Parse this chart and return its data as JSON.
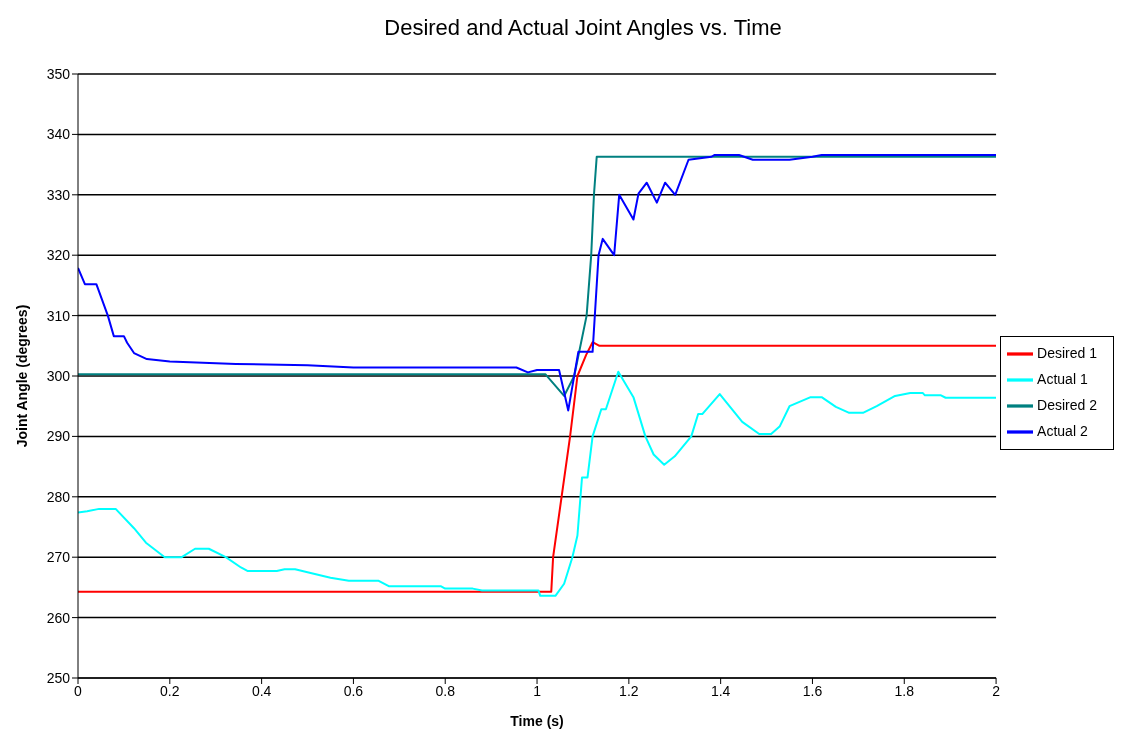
{
  "chart_data": {
    "type": "line",
    "title": "Desired and Actual Joint Angles vs. Time",
    "xlabel": "Time (s)",
    "ylabel": "Joint Angle (degrees)",
    "xlim": [
      0,
      2
    ],
    "xticks": [
      0,
      0.2,
      0.4,
      0.6,
      0.8,
      1,
      1.2,
      1.4,
      1.6,
      1.8,
      2
    ],
    "ylim": [
      250,
      350
    ],
    "yticks": [
      250,
      260,
      270,
      280,
      290,
      300,
      310,
      320,
      330,
      340,
      350
    ],
    "grid": "y",
    "legend": "right",
    "marker": "none",
    "line_style": "solid",
    "series": [
      {
        "name": "Desired 1",
        "color": "#ff0000",
        "x": [
          0,
          1.031,
          1.035,
          1.072,
          1.088,
          1.107,
          1.121,
          1.136,
          2
        ],
        "values": [
          264.3,
          264.3,
          270,
          290,
          300,
          303.5,
          305.6,
          305,
          305
        ]
      },
      {
        "name": "Actual 1",
        "color": "#00ffff",
        "x": [
          0,
          0.02,
          0.046,
          0.082,
          0.122,
          0.148,
          0.189,
          0.226,
          0.255,
          0.285,
          0.322,
          0.355,
          0.37,
          0.433,
          0.45,
          0.473,
          0.5,
          0.55,
          0.59,
          0.655,
          0.677,
          0.79,
          0.8,
          0.86,
          0.88,
          0.96,
          1.003,
          1.007,
          1.04,
          1.059,
          1.077,
          1.088,
          1.098,
          1.11,
          1.121,
          1.14,
          1.15,
          1.177,
          1.21,
          1.236,
          1.254,
          1.277,
          1.3,
          1.336,
          1.351,
          1.36,
          1.398,
          1.447,
          1.484,
          1.51,
          1.529,
          1.55,
          1.596,
          1.62,
          1.651,
          1.68,
          1.71,
          1.74,
          1.78,
          1.813,
          1.84,
          1.845,
          1.88,
          1.89,
          2
        ],
        "values": [
          277.4,
          277.6,
          278,
          278,
          274.8,
          272.4,
          270,
          270,
          271.4,
          271.4,
          270,
          268.3,
          267.7,
          267.7,
          268,
          268,
          267.5,
          266.6,
          266.1,
          266.1,
          265.2,
          265.2,
          264.8,
          264.8,
          264.5,
          264.5,
          264.5,
          263.6,
          263.6,
          265.6,
          270,
          273.6,
          283.2,
          283.2,
          290,
          294.5,
          294.5,
          300.7,
          296.5,
          290,
          287,
          285.3,
          286.7,
          290,
          293.7,
          293.7,
          297,
          292.4,
          290.4,
          290.4,
          291.7,
          295,
          296.5,
          296.5,
          294.9,
          293.9,
          293.9,
          295,
          296.7,
          297.2,
          297.2,
          296.8,
          296.8,
          296.4,
          296.4
        ]
      },
      {
        "name": "Desired 2",
        "color": "#008080",
        "x": [
          0,
          1.018,
          1.059,
          1.081,
          1.108,
          1.118,
          1.124,
          1.13,
          2
        ],
        "values": [
          300.3,
          300.3,
          296.7,
          300,
          310,
          320,
          330,
          336.3,
          336.3
        ]
      },
      {
        "name": "Actual 2",
        "color": "#0000ff",
        "x": [
          0,
          0.015,
          0.04,
          0.065,
          0.078,
          0.1,
          0.107,
          0.122,
          0.15,
          0.2,
          0.344,
          0.5,
          0.6,
          0.955,
          0.98,
          1.0,
          1.048,
          1.068,
          1.09,
          1.121,
          1.134,
          1.143,
          1.168,
          1.179,
          1.21,
          1.221,
          1.239,
          1.261,
          1.279,
          1.301,
          1.33,
          1.38,
          1.387,
          1.44,
          1.47,
          1.55,
          1.6,
          1.62,
          2
        ],
        "values": [
          317.9,
          315.2,
          315.2,
          310,
          306.6,
          306.6,
          305.5,
          303.8,
          302.8,
          302.4,
          302,
          301.8,
          301.4,
          301.4,
          300.6,
          301,
          301,
          294.3,
          304,
          304,
          320,
          322.7,
          320,
          330,
          325.9,
          330.2,
          332,
          328.7,
          332,
          330,
          335.8,
          336.3,
          336.6,
          336.6,
          335.8,
          335.8,
          336.3,
          336.6,
          336.6
        ]
      }
    ]
  }
}
